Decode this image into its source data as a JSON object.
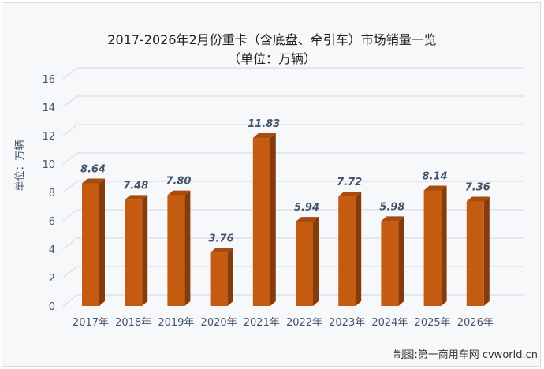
{
  "chart_data": {
    "type": "bar",
    "title": "2017-2026年2月份重卡（含底盘、牵引车）市场销量一览",
    "subtitle": "（单位：万辆）",
    "ylabel": "单位：万辆",
    "xlabel": "",
    "categories": [
      "2017年",
      "2018年",
      "2019年",
      "2020年",
      "2021年",
      "2022年",
      "2023年",
      "2024年",
      "2025年",
      "2026年"
    ],
    "values": [
      8.64,
      7.48,
      7.8,
      3.76,
      11.83,
      5.94,
      7.72,
      5.98,
      8.14,
      7.36
    ],
    "data_labels": [
      "8.64",
      "7.48",
      "7.80",
      "3.76",
      "11.83",
      "5.94",
      "7.72",
      "5.98",
      "8.14",
      "7.36"
    ],
    "ylim": [
      0,
      16
    ],
    "yticks": [
      "0",
      "2",
      "4",
      "6",
      "8",
      "10",
      "12",
      "14",
      "16"
    ],
    "grid": true,
    "style": "3d-column",
    "colors": {
      "bar_front": "#c55a11",
      "bar_side": "#843c0c",
      "bar_top": "#a84c0e",
      "label": "#44546a",
      "grid": "#d9dee6"
    }
  },
  "credit": "制图:第一商用车网 cvworld.cn"
}
